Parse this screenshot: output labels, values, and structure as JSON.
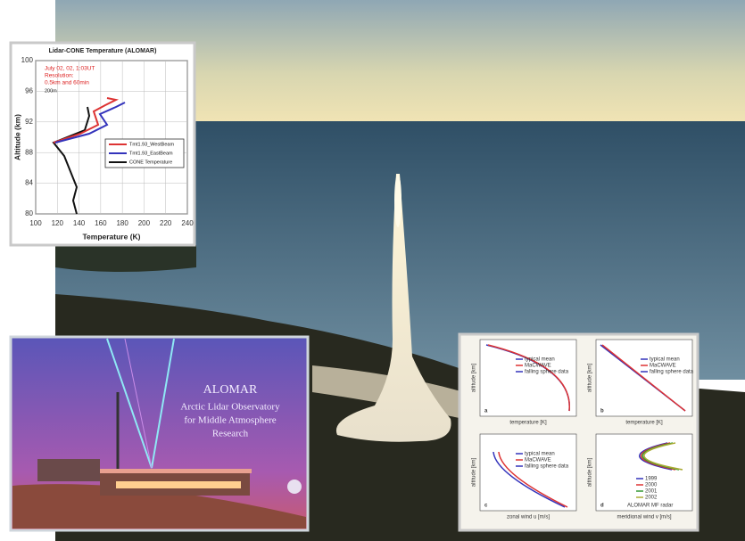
{
  "lidar_chart": {
    "title": "Lidar-CONE Temperature (ALOMAR)",
    "annotations": [
      "July 02, 02, 1:03UT",
      "Resolution:",
      "0.5km and 60min",
      "200m"
    ],
    "y_label": "Altitude (km)",
    "x_label": "Temperature (K)",
    "y_ticks": [
      "100",
      "96",
      "92",
      "88",
      "84",
      "80"
    ],
    "x_ticks": [
      "100",
      "120",
      "140",
      "160",
      "180",
      "200",
      "220",
      "240"
    ],
    "legend": [
      "Tmt1.93_WestBeam",
      "Tmt1.93_EastBeam",
      "CONE Temperature"
    ]
  },
  "alomar_card": {
    "title": "ALOMAR",
    "lines": [
      "Arctic Lidar Observatory",
      "for Middle Atmosphere",
      "Research"
    ]
  },
  "macwave_panels": {
    "a": {
      "label": "a",
      "legend": [
        "typical mean",
        "MaCWAVE",
        "falling sphere data"
      ],
      "x_label": "temperature [K]",
      "y_label": "altitude [km]"
    },
    "b": {
      "label": "b",
      "legend": [
        "typical mean",
        "MaCWAVE",
        "falling sphere data"
      ],
      "x_label": "temperature [K]",
      "y_label": "altitude [km]"
    },
    "c": {
      "label": "c",
      "legend": [
        "typical mean",
        "MaCWAVE",
        "falling sphere data"
      ],
      "x_label": "zonal wind u [m/s]",
      "y_label": "altitude [km]"
    },
    "d": {
      "label": "d",
      "legend": [
        "1999",
        "2000",
        "2001",
        "2002"
      ],
      "note": "ALOMAR MF radar",
      "x_label": "meridional wind v [m/s]",
      "y_label": "altitude [km]"
    }
  }
}
